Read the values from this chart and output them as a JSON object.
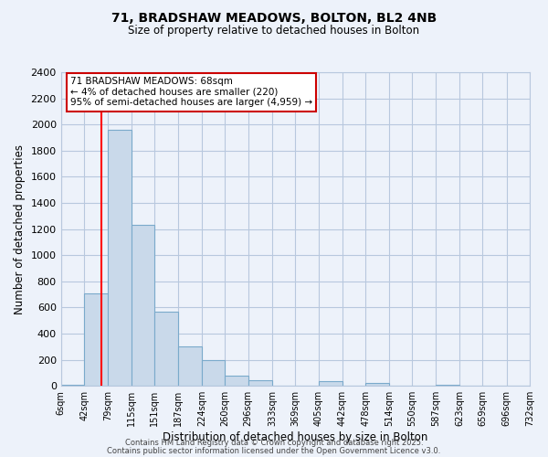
{
  "title": "71, BRADSHAW MEADOWS, BOLTON, BL2 4NB",
  "subtitle": "Size of property relative to detached houses in Bolton",
  "xlabel": "Distribution of detached houses by size in Bolton",
  "ylabel": "Number of detached properties",
  "bar_color": "#c9d9ea",
  "bar_edge_color": "#7aaacb",
  "background_color": "#edf2fa",
  "grid_color": "#b8c8de",
  "bin_labels": [
    "6sqm",
    "42sqm",
    "79sqm",
    "115sqm",
    "151sqm",
    "187sqm",
    "224sqm",
    "260sqm",
    "296sqm",
    "333sqm",
    "369sqm",
    "405sqm",
    "442sqm",
    "478sqm",
    "514sqm",
    "550sqm",
    "587sqm",
    "623sqm",
    "659sqm",
    "696sqm",
    "732sqm"
  ],
  "bar_values": [
    10,
    710,
    1960,
    1230,
    570,
    300,
    200,
    80,
    45,
    0,
    0,
    35,
    0,
    20,
    0,
    0,
    10,
    0,
    0,
    0,
    0
  ],
  "ylim": [
    0,
    2400
  ],
  "yticks": [
    0,
    200,
    400,
    600,
    800,
    1000,
    1200,
    1400,
    1600,
    1800,
    2000,
    2200,
    2400
  ],
  "property_line_x": 68,
  "bin_edges": [
    6,
    42,
    79,
    115,
    151,
    187,
    224,
    260,
    296,
    333,
    369,
    405,
    442,
    478,
    514,
    550,
    587,
    623,
    659,
    696,
    732
  ],
  "annotation_title": "71 BRADSHAW MEADOWS: 68sqm",
  "annotation_line1": "← 4% of detached houses are smaller (220)",
  "annotation_line2": "95% of semi-detached houses are larger (4,959) →",
  "annotation_box_color": "#ffffff",
  "annotation_box_edge_color": "#cc0000",
  "footer1": "Contains HM Land Registry data © Crown copyright and database right 2025.",
  "footer2": "Contains public sector information licensed under the Open Government Licence v3.0.",
  "figsize": [
    6.0,
    5.0
  ],
  "dpi": 100
}
